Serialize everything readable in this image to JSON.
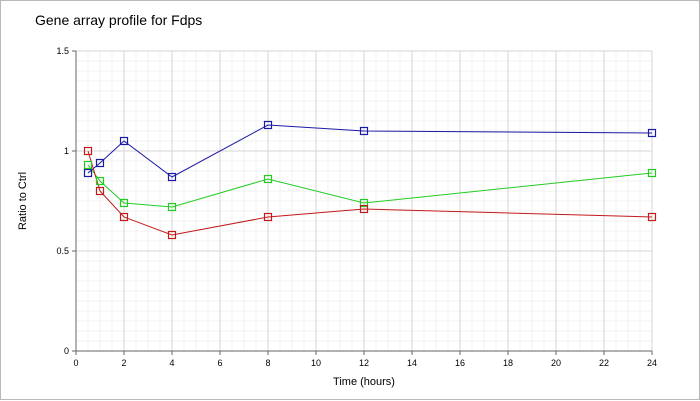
{
  "chart_data": {
    "type": "line",
    "title": "Gene array profile for Fdps",
    "xlabel": "Time (hours)",
    "ylabel": "Ratio to Ctrl",
    "xlim": [
      0,
      24
    ],
    "ylim": [
      0,
      1.5
    ],
    "x_ticks": [
      "0",
      "2",
      "4",
      "6",
      "8",
      "10",
      "12",
      "14",
      "16",
      "18",
      "20",
      "22",
      "24"
    ],
    "y_ticks": [
      "0",
      "0.5",
      "1",
      "1.5"
    ],
    "grid": true,
    "legend": "none",
    "series": [
      {
        "color": "#1a1aa6",
        "x": [
          0.5,
          1,
          2,
          4,
          8,
          12,
          24
        ],
        "y": [
          0.89,
          0.94,
          1.05,
          0.87,
          1.13,
          1.1,
          1.09
        ]
      },
      {
        "color": "#22cc22",
        "x": [
          0.5,
          1,
          2,
          4,
          8,
          12,
          24
        ],
        "y": [
          0.93,
          0.85,
          0.74,
          0.72,
          0.86,
          0.74,
          0.89
        ]
      },
      {
        "color": "#c41a1a",
        "x": [
          0.5,
          1,
          2,
          4,
          8,
          12,
          24
        ],
        "y": [
          1.0,
          0.8,
          0.67,
          0.58,
          0.67,
          0.71,
          0.67
        ]
      }
    ]
  }
}
